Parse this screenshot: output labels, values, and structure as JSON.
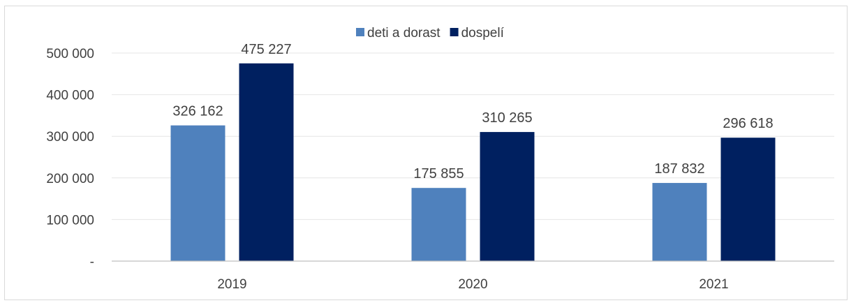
{
  "chart_data": {
    "type": "bar",
    "categories": [
      "2019",
      "2020",
      "2021"
    ],
    "series": [
      {
        "name": "deti a dorast",
        "values": [
          326162,
          175855,
          187832
        ],
        "labels": [
          "326 162",
          "175 855",
          "187 832"
        ],
        "color": "#4f81bd"
      },
      {
        "name": "dospelí",
        "values": [
          475227,
          310265,
          296618
        ],
        "labels": [
          "475 227",
          "310 265",
          "296 618"
        ],
        "color": "#002060"
      }
    ],
    "yticks": [
      0,
      100000,
      200000,
      300000,
      400000,
      500000
    ],
    "ytick_labels": [
      "-",
      "100 000",
      "200 000",
      "300 000",
      "400 000",
      "500 000"
    ],
    "ylim": [
      0,
      500000
    ],
    "grid": true,
    "legend_position": "top"
  }
}
